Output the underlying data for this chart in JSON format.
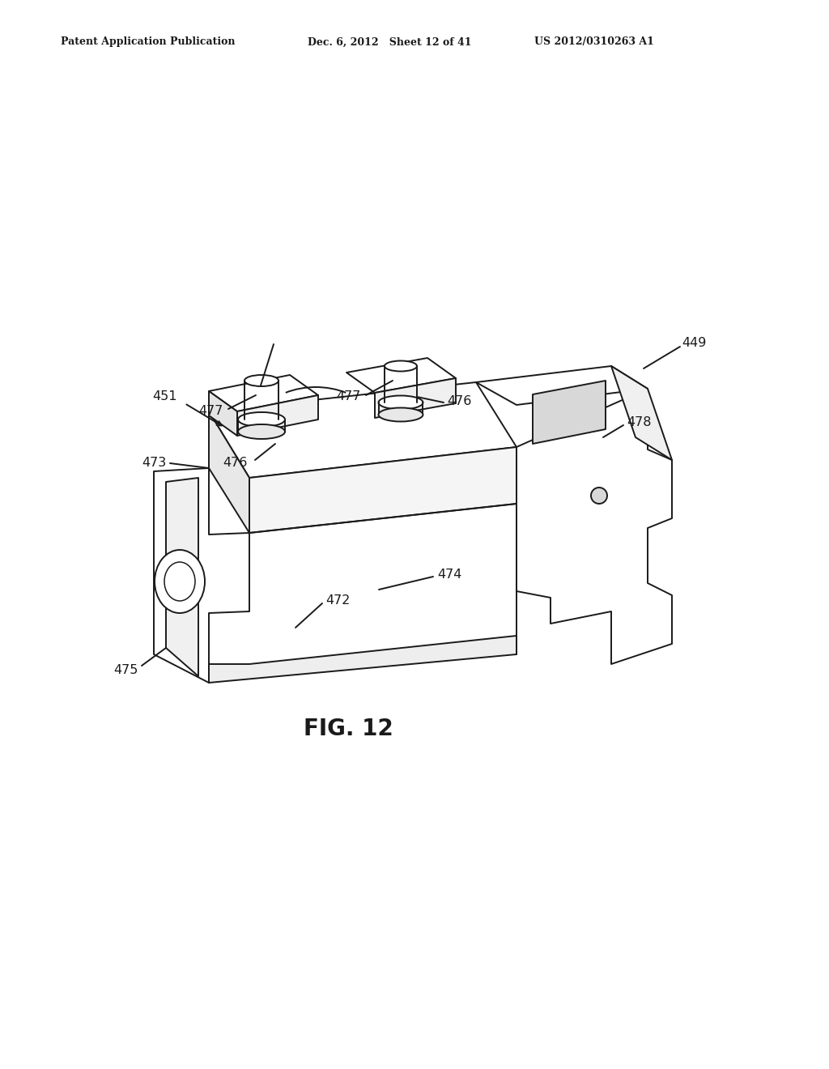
{
  "bg_color": "#ffffff",
  "line_color": "#1a1a1a",
  "header_left": "Patent Application Publication",
  "header_mid": "Dec. 6, 2012   Sheet 12 of 41",
  "header_right": "US 2012/0310263 A1",
  "fig_label": "FIG. 12",
  "line_width": 1.4,
  "label_fontsize": 11.5
}
